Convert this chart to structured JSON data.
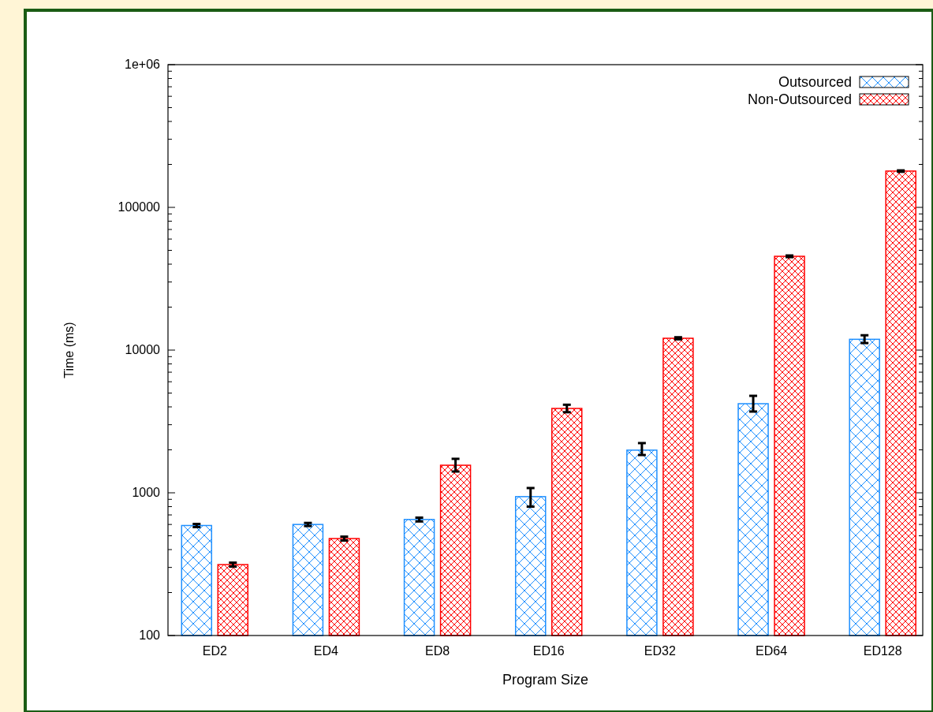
{
  "chart_data": {
    "type": "bar",
    "xlabel": "Program Size",
    "ylabel": "Time (ms)",
    "categories": [
      "ED2",
      "ED4",
      "ED8",
      "ED16",
      "ED32",
      "ED64",
      "ED128"
    ],
    "series": [
      {
        "name": "Outsourced",
        "color": "#1e8fff",
        "values": [
          590,
          600,
          650,
          940,
          1990,
          4210,
          11900
        ],
        "errors": [
          15,
          15,
          20,
          [
            800,
            1080
          ],
          [
            1840,
            2230
          ],
          [
            3710,
            4780
          ],
          [
            11200,
            12700
          ]
        ]
      },
      {
        "name": "Non-Outsourced",
        "color": "#ff0000",
        "values": [
          314,
          478,
          1560,
          3900,
          12100,
          45400,
          179600
        ],
        "errors": [
          10,
          15,
          [
            1410,
            1730
          ],
          [
            3670,
            4140
          ],
          200,
          600,
          2000
        ]
      }
    ],
    "log": true,
    "ylim": [
      100,
      1000000
    ],
    "yticks": [
      100,
      {
        "value": 200,
        "label": null
      },
      {
        "value": 300,
        "label": null
      },
      {
        "value": 400,
        "label": null
      },
      {
        "value": 500,
        "label": null
      },
      {
        "value": 600,
        "label": null
      },
      {
        "value": 700,
        "label": null
      },
      {
        "value": 800,
        "label": null
      },
      {
        "value": 900,
        "label": null
      },
      1000,
      {
        "value": 2000,
        "label": null
      },
      {
        "value": 3000,
        "label": null
      },
      {
        "value": 4000,
        "label": null
      },
      {
        "value": 5000,
        "label": null
      },
      {
        "value": 6000,
        "label": null
      },
      {
        "value": 7000,
        "label": null
      },
      {
        "value": 8000,
        "label": null
      },
      {
        "value": 9000,
        "label": null
      },
      10000,
      {
        "value": 20000,
        "label": null
      },
      {
        "value": 30000,
        "label": null
      },
      {
        "value": 40000,
        "label": null
      },
      {
        "value": 50000,
        "label": null
      },
      {
        "value": 60000,
        "label": null
      },
      {
        "value": 70000,
        "label": null
      },
      {
        "value": 80000,
        "label": null
      },
      {
        "value": 90000,
        "label": null
      },
      100000,
      {
        "value": 200000,
        "label": null
      },
      {
        "value": 300000,
        "label": null
      },
      {
        "value": 400000,
        "label": null
      },
      {
        "value": 500000,
        "label": null
      },
      {
        "value": 600000,
        "label": null
      },
      {
        "value": 700000,
        "label": null
      },
      {
        "value": 800000,
        "label": null
      },
      {
        "value": 900000,
        "label": null
      },
      {
        "value": 1000000,
        "label": "1e+06"
      }
    ],
    "legend": "top right"
  }
}
